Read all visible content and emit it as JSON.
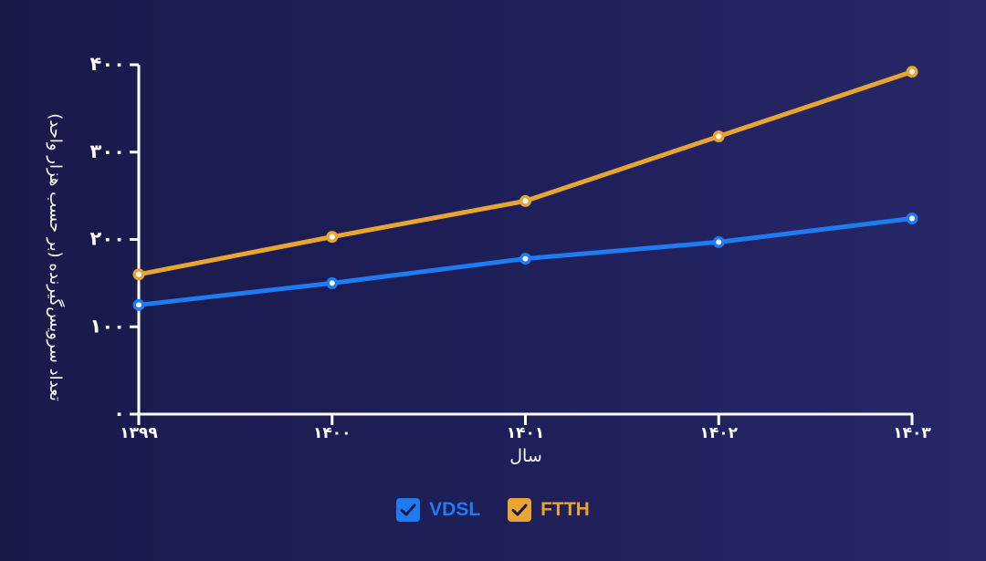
{
  "chart_data": {
    "type": "line",
    "categories": [
      "۱۳۹۹",
      "۱۴۰۰",
      "۱۴۰۱",
      "۱۴۰۲",
      "۱۴۰۳"
    ],
    "series": [
      {
        "name": "VDSL",
        "color": "#1e7bf2",
        "values": [
          125,
          150,
          178,
          197,
          224
        ]
      },
      {
        "name": "FTTH",
        "color": "#e8a532",
        "values": [
          160,
          203,
          244,
          318,
          392
        ]
      }
    ],
    "xlabel": "سال",
    "ylabel": "تعداد سرویس‌گیرنده (بر حسب هزار واحد)",
    "ylim": [
      0,
      400
    ],
    "yticks": [
      0,
      100,
      200,
      300,
      400
    ],
    "ytick_labels": [
      "۰",
      "۱۰۰",
      "۲۰۰",
      "۳۰۰",
      "۴۰۰"
    ],
    "legend_position": "bottom-center"
  },
  "legend": {
    "items": [
      {
        "label": "VDSL",
        "color": "#1e7bf2",
        "checked": true,
        "icon": "checkbox-checked-icon"
      },
      {
        "label": "FTTH",
        "color": "#e8a532",
        "checked": true,
        "icon": "checkbox-checked-icon"
      }
    ]
  }
}
